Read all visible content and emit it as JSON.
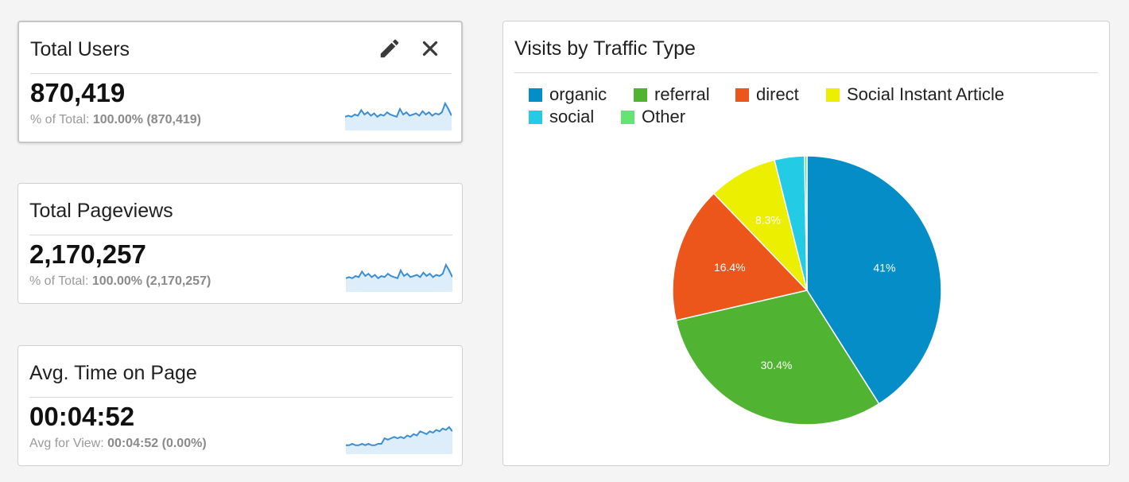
{
  "metrics": [
    {
      "title": "Total Users",
      "value": "870,419",
      "sub_label": "% of Total: ",
      "sub_value": "100.00% (870,419)",
      "tools": [
        "edit-icon",
        "close-icon"
      ],
      "sparkline": [
        8,
        9,
        8,
        10,
        9,
        14,
        10,
        12,
        9,
        11,
        8,
        10,
        9,
        12,
        10,
        9,
        8,
        15,
        10,
        12,
        9,
        10,
        11,
        9,
        13,
        10,
        12,
        9,
        11,
        10,
        12,
        20,
        15,
        9
      ]
    },
    {
      "title": "Total Pageviews",
      "value": "2,170,257",
      "sub_label": "% of Total: ",
      "sub_value": "100.00% (2,170,257)",
      "sparkline": [
        8,
        9,
        8,
        10,
        9,
        14,
        10,
        12,
        9,
        11,
        8,
        10,
        9,
        12,
        10,
        9,
        8,
        15,
        10,
        12,
        9,
        10,
        11,
        9,
        13,
        10,
        12,
        9,
        11,
        10,
        12,
        20,
        15,
        9
      ]
    },
    {
      "title": "Avg. Time on Page",
      "value": "00:04:52",
      "sub_label": "Avg for View: ",
      "sub_value": "00:04:52 (0.00%)",
      "sparkline": [
        3,
        3,
        4,
        3,
        3,
        4,
        3,
        4,
        3,
        3,
        4,
        4,
        8,
        7,
        8,
        9,
        8,
        9,
        8,
        10,
        9,
        11,
        10,
        13,
        12,
        11,
        13,
        12,
        14,
        13,
        15,
        14,
        16,
        13
      ]
    }
  ],
  "traffic_chart": {
    "title": "Visits by Traffic Type",
    "chart_data": {
      "type": "pie",
      "title": "Visits by Traffic Type",
      "legend_position": "top",
      "slices": [
        {
          "name": "organic",
          "value": 41.0,
          "label": "41%",
          "color": "#058dc7"
        },
        {
          "name": "referral",
          "value": 30.4,
          "label": "30.4%",
          "color": "#50b432"
        },
        {
          "name": "direct",
          "value": 16.4,
          "label": "16.4%",
          "color": "#ed561b"
        },
        {
          "name": "Social Instant Article",
          "value": 8.3,
          "label": "8.3%",
          "color": "#edef00"
        },
        {
          "name": "social",
          "value": 3.6,
          "label": "",
          "color": "#24cbe5"
        },
        {
          "name": "Other",
          "value": 0.3,
          "label": "",
          "color": "#64e572"
        }
      ]
    }
  },
  "colors": {
    "sparkline_line": "#3a8ed6",
    "sparkline_fill": "#deedfa"
  }
}
